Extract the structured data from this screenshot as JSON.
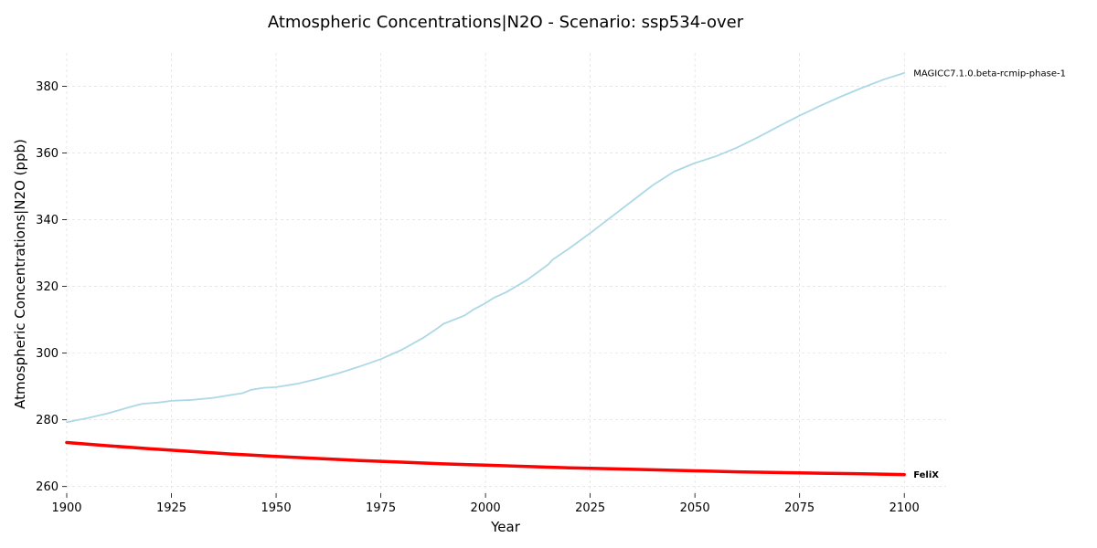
{
  "chart_data": {
    "type": "line",
    "title": "Atmospheric Concentrations|N2O - Scenario: ssp534-over",
    "xlabel": "Year",
    "ylabel": "Atmospheric Concentrations|N2O (ppb)",
    "xlim": [
      1900,
      2110
    ],
    "ylim": [
      258,
      390
    ],
    "xticks": [
      1900,
      1925,
      1950,
      1975,
      2000,
      2025,
      2050,
      2075,
      2100
    ],
    "yticks": [
      260,
      280,
      300,
      320,
      340,
      360,
      380
    ],
    "grid": true,
    "legend": "none",
    "series": [
      {
        "name": "MAGICC7.1.0.beta-rcmip-phase-1",
        "color": "#add8e6",
        "label_bold": false,
        "x": [
          1900,
          1905,
          1910,
          1915,
          1918,
          1922,
          1925,
          1930,
          1935,
          1940,
          1942,
          1944,
          1947,
          1950,
          1955,
          1960,
          1965,
          1970,
          1975,
          1980,
          1985,
          1988,
          1990,
          1995,
          1997,
          2000,
          2002,
          2005,
          2010,
          2015,
          2016,
          2020,
          2025,
          2030,
          2035,
          2040,
          2045,
          2050,
          2055,
          2060,
          2065,
          2070,
          2075,
          2080,
          2085,
          2090,
          2095,
          2100
        ],
        "values": [
          279.3,
          280.5,
          282.0,
          283.8,
          284.8,
          285.2,
          285.7,
          286.0,
          286.6,
          287.6,
          288.0,
          289.0,
          289.6,
          289.8,
          290.8,
          292.3,
          294.0,
          296.0,
          298.2,
          301.0,
          304.5,
          307.0,
          308.8,
          311.3,
          313.0,
          315.0,
          316.6,
          318.3,
          322.0,
          326.6,
          328.0,
          331.4,
          336.0,
          340.8,
          345.6,
          350.4,
          354.4,
          357.0,
          359.0,
          361.6,
          364.7,
          368.0,
          371.2,
          374.2,
          377.0,
          379.6,
          382.0,
          384.0
        ],
        "end_label": "MAGICC7.1.0.beta-rcmip-phase-1"
      },
      {
        "name": "FeliX",
        "color": "#ff0000",
        "label_bold": true,
        "x": [
          1900,
          1910,
          1920,
          1930,
          1940,
          1950,
          1960,
          1970,
          1980,
          1990,
          2000,
          2010,
          2020,
          2030,
          2040,
          2050,
          2060,
          2070,
          2080,
          2090,
          2100
        ],
        "values": [
          273.2,
          272.2,
          271.3,
          270.5,
          269.7,
          269.0,
          268.4,
          267.8,
          267.3,
          266.8,
          266.4,
          266.0,
          265.6,
          265.3,
          265.0,
          264.7,
          264.4,
          264.2,
          264.0,
          263.8,
          263.6
        ],
        "end_label": "FeliX"
      }
    ]
  }
}
